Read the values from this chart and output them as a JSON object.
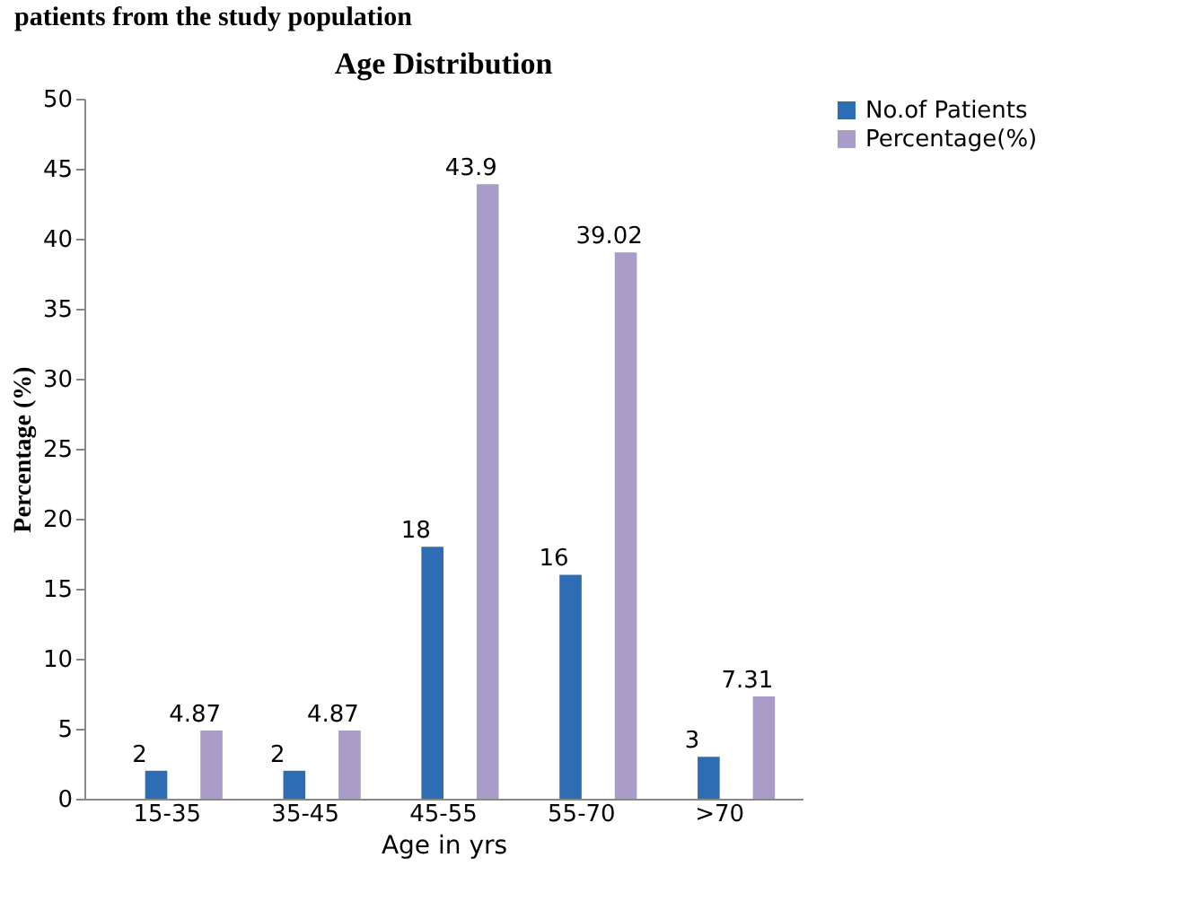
{
  "chart_data": {
    "type": "bar",
    "title": "Age Distribution",
    "annotations": [
      "patients from the study population"
    ],
    "xlabel": "Age in yrs",
    "ylabel": "Percentage (%)",
    "categories": [
      "15-35",
      "35-45",
      "45-55",
      "55-70",
      ">70"
    ],
    "series": [
      {
        "name": "No.of Patients",
        "color": "#2e6db4",
        "values": [
          2,
          2,
          18,
          16,
          3
        ]
      },
      {
        "name": "Percentage(%)",
        "color": "#a99cc9",
        "values": [
          4.87,
          4.87,
          43.9,
          39.02,
          7.31
        ]
      }
    ],
    "ylim": [
      0,
      50
    ],
    "yticks": [
      0,
      5,
      10,
      15,
      20,
      25,
      30,
      35,
      40,
      45,
      50
    ],
    "grid": false,
    "legend": "right",
    "data_labels": true
  }
}
